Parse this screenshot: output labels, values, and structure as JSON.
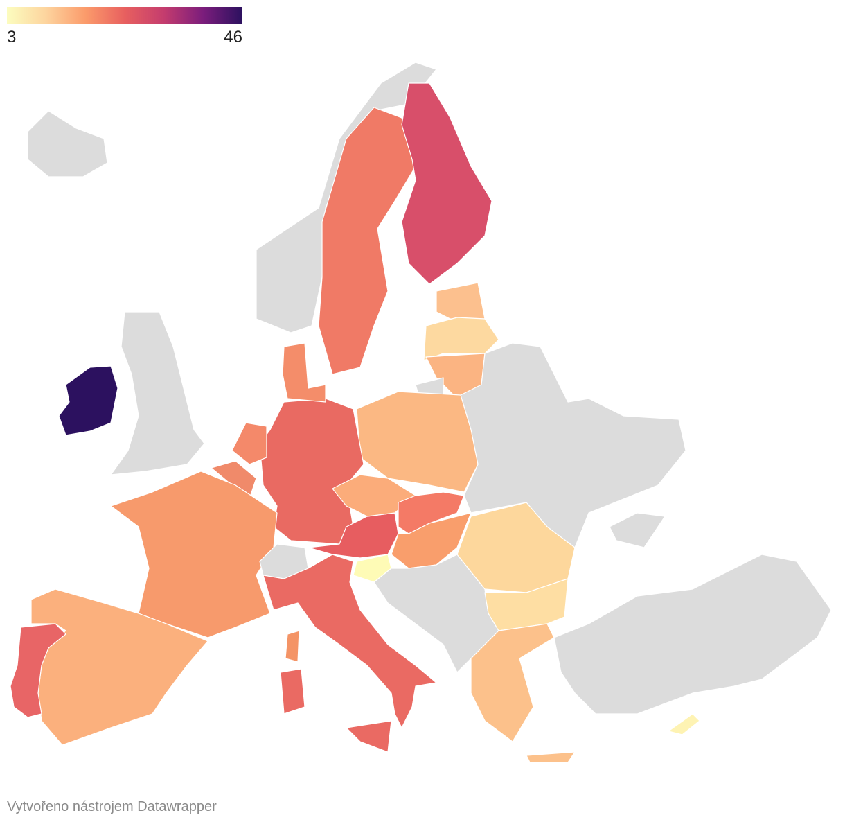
{
  "legend": {
    "min": 3,
    "max": 46,
    "colors": [
      "#fcfdbf",
      "#fdd49e",
      "#fb9b6b",
      "#e8605f",
      "#c43c6e",
      "#7b1d7c",
      "#2c115f"
    ]
  },
  "footer": "Vytvořeno nástrojem Datawrapper"
}
